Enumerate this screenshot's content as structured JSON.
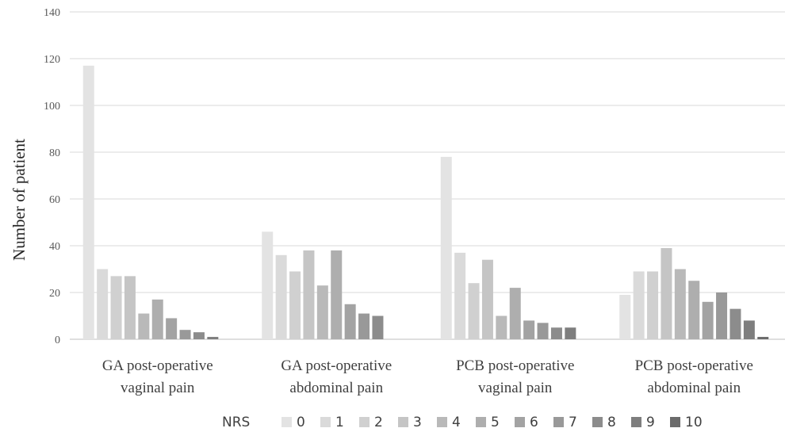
{
  "chart_data": {
    "type": "bar",
    "title": "",
    "xlabel": "",
    "ylabel": "Number of patient",
    "ylim": [
      0,
      140
    ],
    "yticks": [
      0,
      20,
      40,
      60,
      80,
      100,
      120,
      140
    ],
    "grid": true,
    "legend_position": "bottom",
    "legend_title": "NRS",
    "categories": [
      [
        "GA post-operative",
        "vaginal pain"
      ],
      [
        "GA post-operative",
        "abdominal pain"
      ],
      [
        "PCB post-operative",
        "vaginal pain"
      ],
      [
        "PCB post-operative",
        "abdominal pain"
      ]
    ],
    "series": [
      {
        "name": "0",
        "color": "#e3e3e3",
        "values": [
          117,
          46,
          78,
          19
        ]
      },
      {
        "name": "1",
        "color": "#dadada",
        "values": [
          30,
          36,
          37,
          29
        ]
      },
      {
        "name": "2",
        "color": "#d0d0d0",
        "values": [
          27,
          29,
          24,
          29
        ]
      },
      {
        "name": "3",
        "color": "#c5c5c5",
        "values": [
          27,
          38,
          34,
          39
        ]
      },
      {
        "name": "4",
        "color": "#b9b9b9",
        "values": [
          11,
          23,
          10,
          30
        ]
      },
      {
        "name": "5",
        "color": "#aeaeae",
        "values": [
          17,
          38,
          22,
          25
        ]
      },
      {
        "name": "6",
        "color": "#a3a3a3",
        "values": [
          9,
          15,
          8,
          16
        ]
      },
      {
        "name": "7",
        "color": "#999999",
        "values": [
          4,
          11,
          7,
          20
        ]
      },
      {
        "name": "8",
        "color": "#8c8c8c",
        "values": [
          3,
          10,
          5,
          13
        ]
      },
      {
        "name": "9",
        "color": "#7e7e7e",
        "values": [
          1,
          0,
          5,
          8
        ]
      },
      {
        "name": "10",
        "color": "#6b6b6b",
        "values": [
          0,
          0,
          0,
          1
        ]
      }
    ]
  }
}
